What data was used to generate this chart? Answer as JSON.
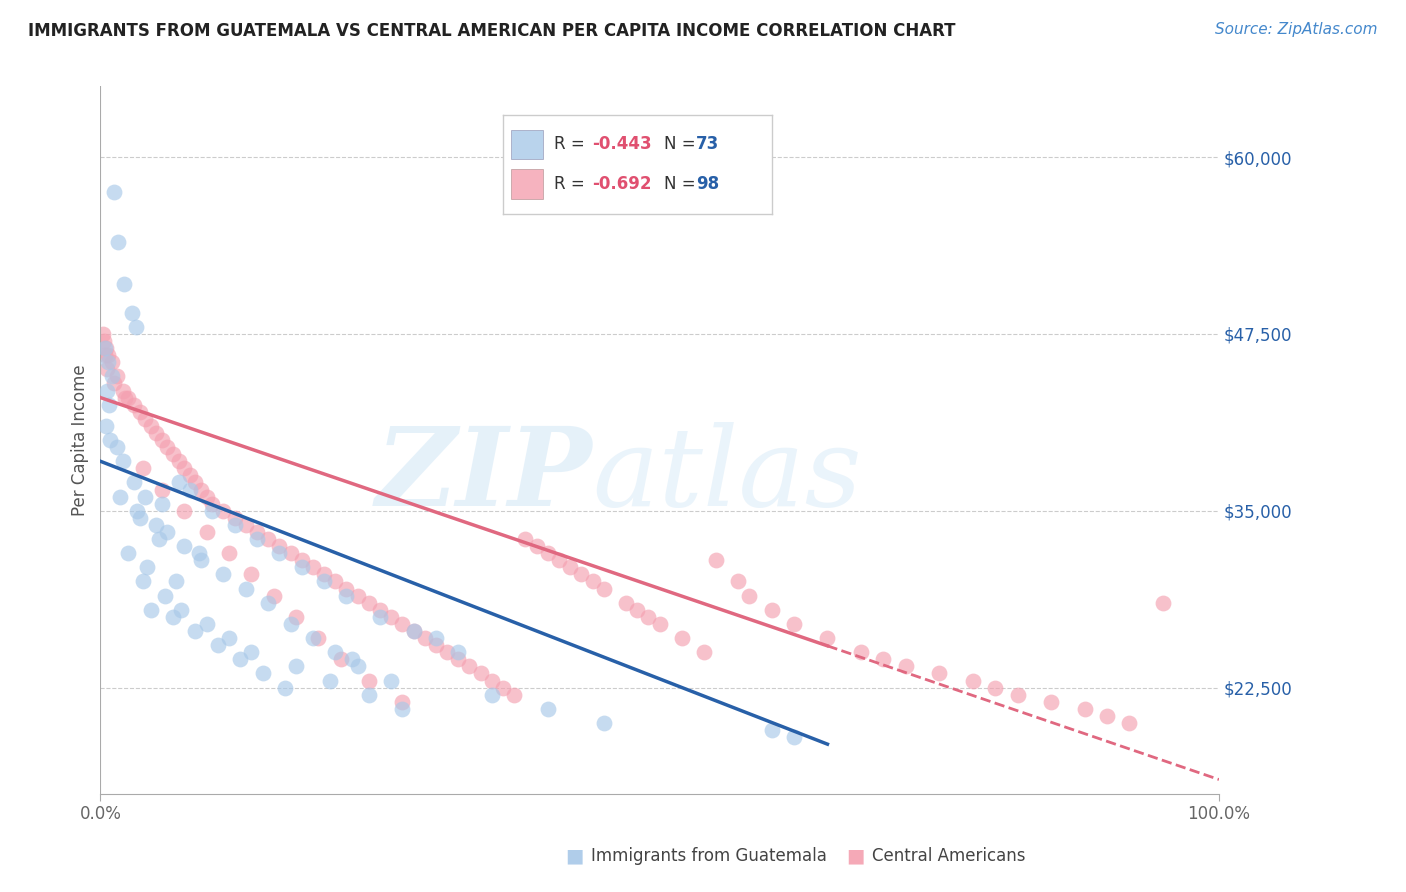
{
  "title": "IMMIGRANTS FROM GUATEMALA VS CENTRAL AMERICAN PER CAPITA INCOME CORRELATION CHART",
  "source": "Source: ZipAtlas.com",
  "ylabel": "Per Capita Income",
  "xlim": [
    0,
    100
  ],
  "ylim": [
    15000,
    65000
  ],
  "yticks": [
    22500,
    35000,
    47500,
    60000
  ],
  "ytick_labels": [
    "$22,500",
    "$35,000",
    "$47,500",
    "$60,000"
  ],
  "xtick_labels": [
    "0.0%",
    "100.0%"
  ],
  "blue_color": "#a8c8e8",
  "blue_line_color": "#2860a8",
  "pink_color": "#f4a0b0",
  "pink_line_color": "#e06880",
  "legend_r1": "R = -0.443",
  "legend_n1": "N = 73",
  "legend_r2": "R = -0.692",
  "legend_n2": "N = 98",
  "legend_label1": "Immigrants from Guatemala",
  "legend_label2": "Central Americans",
  "watermark": "ZIPatlas",
  "background_color": "#ffffff",
  "grid_color": "#cccccc",
  "blue_scatter_x": [
    1.2,
    1.6,
    2.1,
    2.8,
    3.2,
    0.4,
    0.7,
    1.0,
    0.6,
    0.8,
    0.5,
    0.9,
    1.5,
    2.0,
    3.0,
    4.0,
    5.5,
    7.0,
    8.0,
    10.0,
    12.0,
    14.0,
    16.0,
    18.0,
    20.0,
    22.0,
    25.0,
    28.0,
    30.0,
    32.0,
    3.5,
    5.0,
    6.0,
    7.5,
    9.0,
    11.0,
    13.0,
    15.0,
    17.0,
    19.0,
    21.0,
    23.0,
    26.0,
    4.5,
    6.5,
    8.5,
    10.5,
    12.5,
    14.5,
    16.5,
    3.8,
    5.8,
    7.2,
    9.5,
    11.5,
    13.5,
    17.5,
    20.5,
    24.0,
    27.0,
    2.5,
    4.2,
    6.8,
    1.8,
    3.3,
    5.2,
    8.8,
    22.5,
    60.0,
    62.0,
    35.0,
    40.0,
    45.0
  ],
  "blue_scatter_y": [
    57500,
    54000,
    51000,
    49000,
    48000,
    46500,
    45500,
    44500,
    43500,
    42500,
    41000,
    40000,
    39500,
    38500,
    37000,
    36000,
    35500,
    37000,
    36500,
    35000,
    34000,
    33000,
    32000,
    31000,
    30000,
    29000,
    27500,
    26500,
    26000,
    25000,
    34500,
    34000,
    33500,
    32500,
    31500,
    30500,
    29500,
    28500,
    27000,
    26000,
    25000,
    24000,
    23000,
    28000,
    27500,
    26500,
    25500,
    24500,
    23500,
    22500,
    30000,
    29000,
    28000,
    27000,
    26000,
    25000,
    24000,
    23000,
    22000,
    21000,
    32000,
    31000,
    30000,
    36000,
    35000,
    33000,
    32000,
    24500,
    19500,
    19000,
    22000,
    21000,
    20000
  ],
  "pink_scatter_x": [
    0.3,
    0.5,
    0.7,
    1.0,
    1.5,
    2.0,
    2.5,
    3.0,
    3.5,
    4.0,
    4.5,
    5.0,
    5.5,
    6.0,
    6.5,
    7.0,
    7.5,
    8.0,
    8.5,
    9.0,
    9.5,
    10.0,
    11.0,
    12.0,
    13.0,
    14.0,
    15.0,
    16.0,
    17.0,
    18.0,
    19.0,
    20.0,
    21.0,
    22.0,
    23.0,
    24.0,
    25.0,
    26.0,
    27.0,
    28.0,
    29.0,
    30.0,
    31.0,
    32.0,
    33.0,
    34.0,
    35.0,
    36.0,
    37.0,
    38.0,
    39.0,
    40.0,
    41.0,
    42.0,
    43.0,
    44.0,
    45.0,
    47.0,
    48.0,
    49.0,
    50.0,
    52.0,
    54.0,
    55.0,
    57.0,
    58.0,
    60.0,
    62.0,
    65.0,
    68.0,
    70.0,
    72.0,
    75.0,
    78.0,
    80.0,
    82.0,
    85.0,
    88.0,
    90.0,
    92.0,
    95.0,
    1.2,
    2.2,
    3.8,
    5.5,
    7.5,
    9.5,
    11.5,
    13.5,
    15.5,
    17.5,
    19.5,
    21.5,
    24.0,
    27.0,
    0.2,
    0.4,
    0.6
  ],
  "pink_scatter_y": [
    47000,
    46500,
    46000,
    45500,
    44500,
    43500,
    43000,
    42500,
    42000,
    41500,
    41000,
    40500,
    40000,
    39500,
    39000,
    38500,
    38000,
    37500,
    37000,
    36500,
    36000,
    35500,
    35000,
    34500,
    34000,
    33500,
    33000,
    32500,
    32000,
    31500,
    31000,
    30500,
    30000,
    29500,
    29000,
    28500,
    28000,
    27500,
    27000,
    26500,
    26000,
    25500,
    25000,
    24500,
    24000,
    23500,
    23000,
    22500,
    22000,
    33000,
    32500,
    32000,
    31500,
    31000,
    30500,
    30000,
    29500,
    28500,
    28000,
    27500,
    27000,
    26000,
    25000,
    31500,
    30000,
    29000,
    28000,
    27000,
    26000,
    25000,
    24500,
    24000,
    23500,
    23000,
    22500,
    22000,
    21500,
    21000,
    20500,
    20000,
    28500,
    44000,
    43000,
    38000,
    36500,
    35000,
    33500,
    32000,
    30500,
    29000,
    27500,
    26000,
    24500,
    23000,
    21500,
    47500,
    46000,
    45000
  ]
}
